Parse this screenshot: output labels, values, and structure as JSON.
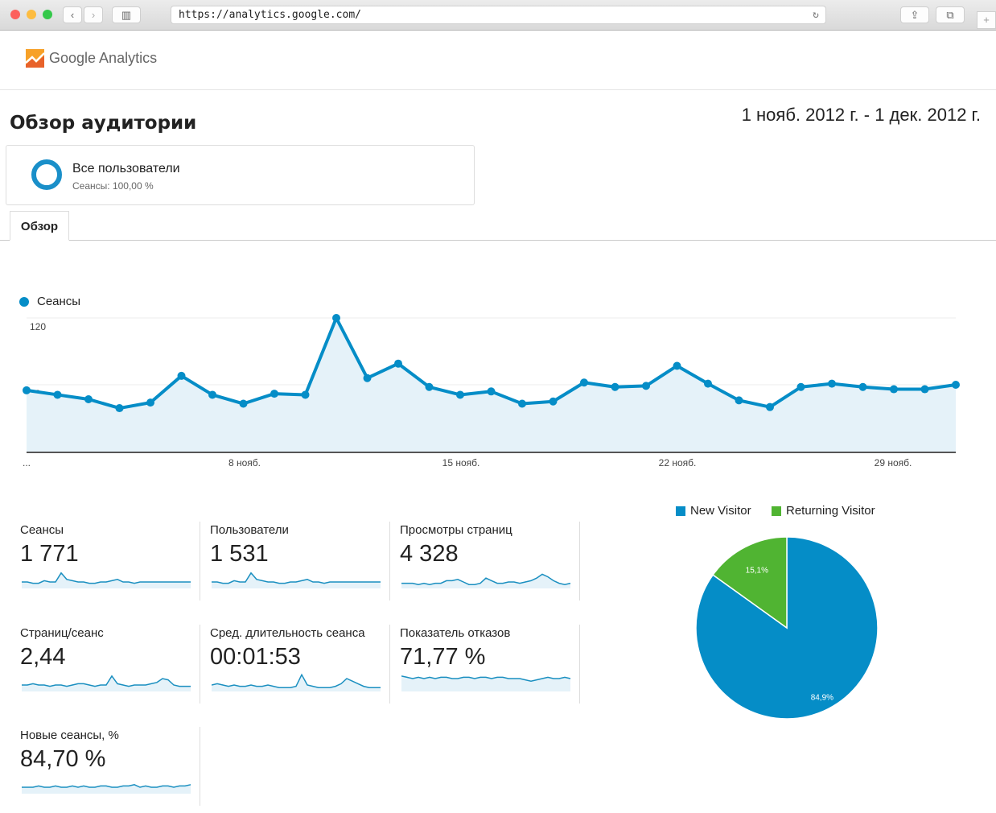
{
  "browser": {
    "url": "https://analytics.google.com/"
  },
  "app": {
    "logo_text": "Google Analytics"
  },
  "header": {
    "title": "Обзор аудитории",
    "date_range": "1 нояб. 2012 г. - 1 дек. 2012 г."
  },
  "segment": {
    "name": "Все пользователи",
    "detail": "Сеансы: 100,00 %"
  },
  "tabs": [
    {
      "label": "Обзор"
    }
  ],
  "chart_data": [
    {
      "type": "line",
      "title": "",
      "legend": "Сеансы",
      "ylim": [
        0,
        120
      ],
      "y_ticks": [
        "120",
        "60"
      ],
      "x_ticks": [
        "...",
        "8 нояб.",
        "15 нояб.",
        "22 нояб.",
        "29 нояб."
      ],
      "x": [
        "1 нояб.",
        "2 нояб.",
        "3 нояб.",
        "4 нояб.",
        "5 нояб.",
        "6 нояб.",
        "7 нояб.",
        "8 нояб.",
        "9 нояб.",
        "10 нояб.",
        "11 нояб.",
        "12 нояб.",
        "13 нояб.",
        "14 нояб.",
        "15 нояб.",
        "16 нояб.",
        "17 нояб.",
        "18 нояб.",
        "19 нояб.",
        "20 нояб.",
        "21 нояб.",
        "22 нояб.",
        "23 нояб.",
        "24 нояб.",
        "25 нояб.",
        "26 нояб.",
        "27 нояб.",
        "28 нояб.",
        "29 нояб.",
        "30 нояб.",
        "1 дек."
      ],
      "values": [
        55,
        51,
        47,
        39,
        44,
        68,
        51,
        43,
        52,
        51,
        120,
        66,
        79,
        58,
        51,
        54,
        43,
        45,
        62,
        58,
        59,
        77,
        61,
        46,
        40,
        58,
        61,
        58,
        56,
        56,
        60
      ]
    },
    {
      "type": "pie",
      "legend": [
        "New Visitor",
        "Returning Visitor"
      ],
      "values": [
        84.9,
        15.1
      ],
      "labels": [
        "84,9%",
        "15,1%"
      ],
      "colors": [
        "#058dc7",
        "#50b432"
      ]
    }
  ],
  "metrics": [
    {
      "label": "Сеансы",
      "value": "1 771",
      "spark": [
        5,
        5,
        4,
        4,
        6,
        5,
        5,
        12,
        7,
        6,
        5,
        5,
        4,
        4,
        5,
        5,
        6,
        7,
        5,
        5,
        4,
        5,
        5,
        5,
        5,
        5,
        5,
        5,
        5,
        5,
        5
      ]
    },
    {
      "label": "Пользователи",
      "value": "1 531",
      "spark": [
        5,
        5,
        4,
        4,
        6,
        5,
        5,
        12,
        7,
        6,
        5,
        5,
        4,
        4,
        5,
        5,
        6,
        7,
        5,
        5,
        4,
        5,
        5,
        5,
        5,
        5,
        5,
        5,
        5,
        5,
        5
      ]
    },
    {
      "label": "Просмотры страниц",
      "value": "4 328",
      "spark": [
        4,
        4,
        4,
        3,
        4,
        3,
        4,
        4,
        6,
        6,
        7,
        5,
        3,
        3,
        4,
        8,
        6,
        4,
        4,
        5,
        5,
        4,
        5,
        6,
        8,
        11,
        9,
        6,
        4,
        3,
        4
      ]
    },
    {
      "label": "Страниц/сеанс",
      "value": "2,44",
      "spark": [
        5,
        5,
        6,
        5,
        5,
        4,
        5,
        5,
        4,
        5,
        6,
        6,
        5,
        4,
        5,
        5,
        12,
        6,
        5,
        4,
        5,
        5,
        5,
        6,
        7,
        10,
        9,
        5,
        4,
        4,
        4
      ]
    },
    {
      "label": "Сред. длительность сеанса",
      "value": "00:01:53",
      "spark": [
        5,
        6,
        5,
        4,
        5,
        4,
        4,
        5,
        4,
        4,
        5,
        4,
        3,
        3,
        3,
        4,
        13,
        5,
        4,
        3,
        3,
        3,
        4,
        6,
        10,
        8,
        6,
        4,
        3,
        3,
        3
      ]
    },
    {
      "label": "Показатель отказов",
      "value": "71,77 %",
      "spark": [
        12,
        11,
        10,
        11,
        10,
        11,
        10,
        11,
        11,
        10,
        10,
        11,
        11,
        10,
        11,
        11,
        10,
        11,
        11,
        10,
        10,
        10,
        9,
        8,
        9,
        10,
        11,
        10,
        10,
        11,
        10
      ]
    },
    {
      "label": "Новые сеансы, %",
      "value": "84,70 %",
      "spark": [
        5,
        5,
        5,
        6,
        5,
        5,
        6,
        5,
        5,
        6,
        5,
        6,
        5,
        5,
        6,
        6,
        5,
        5,
        6,
        6,
        7,
        5,
        6,
        5,
        5,
        6,
        6,
        5,
        6,
        6,
        7
      ]
    }
  ]
}
